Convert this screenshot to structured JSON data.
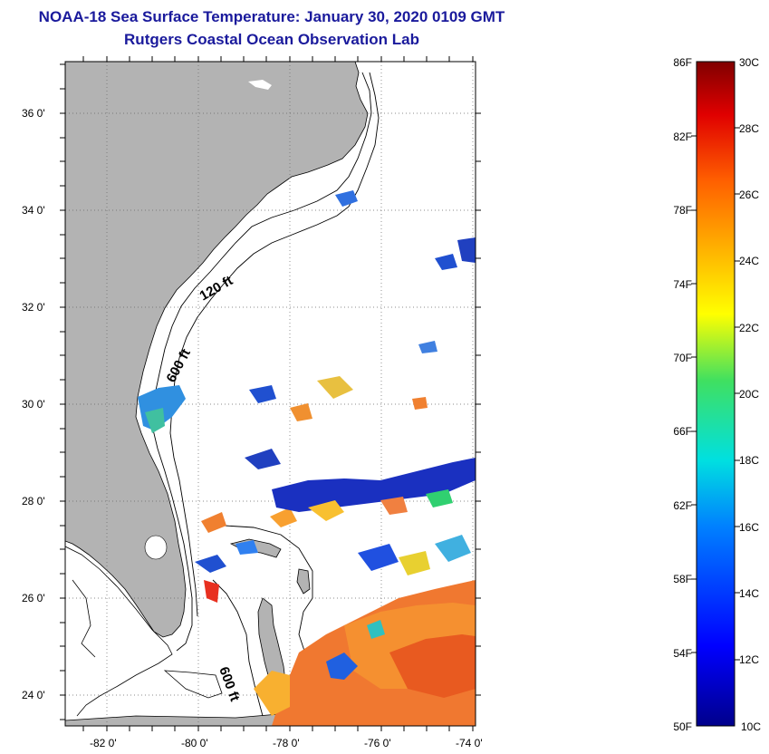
{
  "header": {
    "title": "NOAA-18 Sea Surface Temperature:  January 30, 2020 0109 GMT",
    "subtitle": "Rutgers Coastal Ocean Observation Lab"
  },
  "map": {
    "longitude_ticks": [
      "-82 0'",
      "-80 0'",
      "-78 0'",
      "-76 0'",
      "-74 0'"
    ],
    "latitude_ticks": [
      "36 0'",
      "34 0'",
      "32 0'",
      "30 0'",
      "28 0'",
      "26 0'",
      "24 0'"
    ],
    "contour_labels": [
      "120 ft",
      "600 ft",
      "600 ft"
    ],
    "land_color": "#b3b3b3",
    "grid": "dotted"
  },
  "colorbar": {
    "fahrenheit_labels": [
      "86F",
      "82F",
      "78F",
      "74F",
      "70F",
      "66F",
      "62F",
      "58F",
      "54F",
      "50F"
    ],
    "celsius_labels": [
      "30C",
      "28C",
      "26C",
      "24C",
      "22C",
      "20C",
      "18C",
      "16C",
      "14C",
      "12C",
      "10C"
    ],
    "colormap": "jet",
    "min_c": 10,
    "max_c": 30
  }
}
